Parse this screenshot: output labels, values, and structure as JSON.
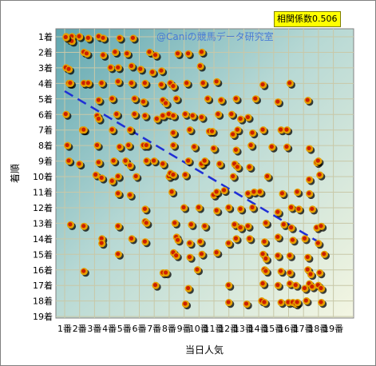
{
  "chart_data": {
    "type": "scatter",
    "title": "",
    "watermark": "@Caniの競馬データ研究室",
    "annotation": "相関係数0.506",
    "xlabel": "当日人気",
    "ylabel": "着順",
    "x_ticks": [
      "1番",
      "2番",
      "3番",
      "4番",
      "5番",
      "6番",
      "7番",
      "8番",
      "9番",
      "10番",
      "11番",
      "12番",
      "13番",
      "14番",
      "15番",
      "16番",
      "17番",
      "18番",
      "19番"
    ],
    "y_ticks": [
      "1着",
      "2着",
      "3着",
      "4着",
      "5着",
      "6着",
      "7着",
      "8着",
      "9着",
      "10着",
      "11着",
      "12着",
      "13着",
      "14着",
      "15着",
      "16着",
      "17着",
      "18着",
      "19着"
    ],
    "xlim": [
      1,
      19
    ],
    "ylim": [
      1,
      19
    ],
    "y_inverted": true,
    "grid": true,
    "trendline": {
      "style": "dashed",
      "color": "#1f2fd6",
      "from": [
        1,
        4.5
      ],
      "to": [
        18,
        14.2
      ]
    },
    "colors": {
      "point_outer": "#e5a000",
      "point_inner": "#cc1f00",
      "point_shadow": "#000000",
      "grid": "#c8c8a8"
    },
    "points": [
      [
        1.1,
        1.0
      ],
      [
        1.3,
        1.1
      ],
      [
        1.5,
        1.0
      ],
      [
        2.0,
        1.0
      ],
      [
        2.6,
        1.1
      ],
      [
        3.3,
        1.0
      ],
      [
        3.6,
        1.1
      ],
      [
        4.7,
        1.1
      ],
      [
        5.6,
        1.1
      ],
      [
        1.3,
        1.2
      ],
      [
        1.5,
        1.3
      ],
      [
        1.1,
        1.05
      ],
      [
        2.3,
        2.0
      ],
      [
        2.5,
        2.1
      ],
      [
        3.6,
        2.2
      ],
      [
        4.4,
        2.0
      ],
      [
        5.2,
        2.1
      ],
      [
        6.7,
        2.0
      ],
      [
        7.1,
        2.2
      ],
      [
        8.6,
        2.1
      ],
      [
        9.3,
        2.1
      ],
      [
        10.2,
        2.0
      ],
      [
        1.1,
        3.0
      ],
      [
        1.3,
        3.1
      ],
      [
        4.1,
        3.0
      ],
      [
        4.6,
        3.0
      ],
      [
        5.5,
        2.9
      ],
      [
        6.1,
        3.1
      ],
      [
        6.9,
        3.3
      ],
      [
        7.5,
        3.2
      ],
      [
        10.1,
        2.9
      ],
      [
        1.3,
        4.0
      ],
      [
        1.4,
        4.0
      ],
      [
        2.3,
        4.0
      ],
      [
        2.6,
        4.0
      ],
      [
        3.5,
        4.0
      ],
      [
        4.6,
        3.9
      ],
      [
        5.5,
        4.0
      ],
      [
        6.4,
        4.0
      ],
      [
        7.5,
        4.1
      ],
      [
        8.1,
        4.0
      ],
      [
        8.3,
        4.2
      ],
      [
        9.2,
        4.0
      ],
      [
        10.3,
        4.0
      ],
      [
        11.2,
        3.9
      ],
      [
        14.3,
        4.1
      ],
      [
        16.1,
        4.0
      ],
      [
        3.3,
        5.1
      ],
      [
        4.2,
        5.0
      ],
      [
        5.7,
        5.0
      ],
      [
        6.3,
        5.2
      ],
      [
        7.6,
        5.1
      ],
      [
        7.8,
        5.3
      ],
      [
        8.5,
        5.0
      ],
      [
        10.6,
        5.0
      ],
      [
        11.5,
        5.1
      ],
      [
        12.5,
        5.0
      ],
      [
        13.8,
        5.0
      ],
      [
        15.3,
        5.2
      ],
      [
        17.3,
        5.1
      ],
      [
        1.1,
        6.0
      ],
      [
        3.2,
        6.1
      ],
      [
        3.3,
        6.3
      ],
      [
        4.5,
        6.0
      ],
      [
        5.7,
        6.0
      ],
      [
        6.4,
        6.1
      ],
      [
        7.2,
        6.3
      ],
      [
        7.6,
        6.1
      ],
      [
        8.0,
        6.0
      ],
      [
        8.3,
        6.1
      ],
      [
        9.1,
        6.0
      ],
      [
        9.6,
        6.1
      ],
      [
        10.2,
        6.2
      ],
      [
        11.3,
        6.0
      ],
      [
        12.2,
        6.0
      ],
      [
        13.3,
        6.2
      ],
      [
        12.8,
        6.3
      ],
      [
        2.2,
        7.0
      ],
      [
        2.3,
        7.0
      ],
      [
        4.2,
        7.0
      ],
      [
        5.4,
        7.0
      ],
      [
        8.3,
        7.2
      ],
      [
        9.4,
        7.0
      ],
      [
        10.7,
        7.1
      ],
      [
        10.9,
        7.1
      ],
      [
        12.3,
        7.3
      ],
      [
        12.6,
        7.0
      ],
      [
        13.6,
        7.2
      ],
      [
        14.3,
        7.0
      ],
      [
        15.5,
        7.0
      ],
      [
        15.9,
        7.0
      ],
      [
        1.2,
        8.0
      ],
      [
        3.2,
        8.0
      ],
      [
        4.7,
        8.1
      ],
      [
        5.3,
        8.0
      ],
      [
        6.3,
        8.0
      ],
      [
        6.5,
        8.0
      ],
      [
        8.3,
        8.0
      ],
      [
        9.7,
        8.1
      ],
      [
        11.0,
        8.2
      ],
      [
        12.5,
        8.3
      ],
      [
        13.5,
        8.0
      ],
      [
        14.9,
        8.1
      ],
      [
        15.9,
        8.1
      ],
      [
        17.4,
        8.2
      ],
      [
        1.3,
        9.0
      ],
      [
        2.0,
        9.2
      ],
      [
        3.3,
        9.1
      ],
      [
        4.3,
        9.0
      ],
      [
        5.1,
        9.0
      ],
      [
        5.4,
        9.3
      ],
      [
        6.5,
        9.0
      ],
      [
        7.0,
        9.0
      ],
      [
        7.6,
        9.2
      ],
      [
        9.3,
        9.0
      ],
      [
        10.2,
        9.2
      ],
      [
        10.4,
        9.0
      ],
      [
        11.4,
        9.2
      ],
      [
        12.4,
        9.2
      ],
      [
        12.6,
        9.4
      ],
      [
        13.4,
        9.4
      ],
      [
        17.9,
        9.1
      ],
      [
        18.0,
        9.0
      ],
      [
        3.1,
        9.9
      ],
      [
        3.5,
        10.1
      ],
      [
        4.2,
        10.3
      ],
      [
        4.6,
        10.0
      ],
      [
        5.8,
        10.0
      ],
      [
        8.0,
        10.0
      ],
      [
        8.1,
        9.8
      ],
      [
        8.3,
        9.9
      ],
      [
        9.1,
        9.9
      ],
      [
        12.3,
        10.0
      ],
      [
        14.6,
        10.0
      ],
      [
        17.4,
        10.2
      ],
      [
        18.1,
        9.9
      ],
      [
        4.6,
        11.1
      ],
      [
        5.4,
        11.2
      ],
      [
        8.2,
        11.0
      ],
      [
        11.0,
        11.2
      ],
      [
        11.2,
        11.0
      ],
      [
        11.7,
        10.9
      ],
      [
        13.3,
        11.1
      ],
      [
        13.7,
        11.0
      ],
      [
        14.1,
        11.0
      ],
      [
        15.6,
        11.1
      ],
      [
        16.6,
        11.0
      ],
      [
        17.4,
        11.1
      ],
      [
        6.4,
        12.1
      ],
      [
        9.0,
        12.0
      ],
      [
        10.0,
        12.0
      ],
      [
        11.2,
        12.2
      ],
      [
        12.0,
        12.0
      ],
      [
        12.8,
        12.1
      ],
      [
        13.6,
        12.0
      ],
      [
        15.3,
        12.3
      ],
      [
        16.2,
        12.0
      ],
      [
        16.7,
        12.1
      ],
      [
        17.6,
        12.1
      ],
      [
        1.4,
        13.1
      ],
      [
        2.3,
        13.2
      ],
      [
        4.6,
        13.2
      ],
      [
        6.4,
        12.9
      ],
      [
        6.5,
        13.0
      ],
      [
        8.4,
        13.0
      ],
      [
        9.5,
        13.1
      ],
      [
        10.4,
        13.2
      ],
      [
        12.4,
        13.1
      ],
      [
        12.8,
        13.3
      ],
      [
        13.3,
        13.2
      ],
      [
        14.5,
        13.0
      ],
      [
        15.7,
        13.1
      ],
      [
        16.2,
        13.3
      ],
      [
        17.9,
        13.3
      ],
      [
        18.2,
        13.2
      ],
      [
        3.5,
        14.0
      ],
      [
        3.5,
        14.3
      ],
      [
        5.5,
        14.0
      ],
      [
        6.4,
        14.2
      ],
      [
        8.5,
        13.9
      ],
      [
        8.6,
        14.1
      ],
      [
        9.4,
        14.3
      ],
      [
        10.1,
        14.2
      ],
      [
        12.0,
        14.3
      ],
      [
        12.5,
        14.0
      ],
      [
        13.4,
        14.0
      ],
      [
        14.4,
        14.2
      ],
      [
        15.3,
        13.9
      ],
      [
        16.3,
        14.1
      ],
      [
        17.1,
        14.0
      ],
      [
        18.0,
        14.3
      ],
      [
        4.6,
        15.0
      ],
      [
        8.3,
        14.9
      ],
      [
        8.5,
        15.1
      ],
      [
        9.4,
        15.2
      ],
      [
        10.2,
        15.0
      ],
      [
        11.2,
        14.9
      ],
      [
        14.3,
        15.0
      ],
      [
        14.5,
        15.3
      ],
      [
        15.3,
        15.1
      ],
      [
        16.1,
        15.1
      ],
      [
        17.3,
        15.2
      ],
      [
        18.4,
        15.0
      ],
      [
        2.3,
        16.1
      ],
      [
        7.6,
        16.2
      ],
      [
        7.8,
        16.2
      ],
      [
        9.9,
        16.0
      ],
      [
        14.4,
        16.0
      ],
      [
        14.5,
        16.1
      ],
      [
        15.5,
        16.1
      ],
      [
        16.1,
        16.2
      ],
      [
        17.3,
        16.0
      ],
      [
        17.5,
        16.3
      ],
      [
        18.1,
        16.2
      ],
      [
        7.1,
        17.0
      ],
      [
        9.3,
        17.2
      ],
      [
        12.0,
        17.0
      ],
      [
        14.3,
        16.9
      ],
      [
        15.3,
        17.0
      ],
      [
        16.1,
        16.9
      ],
      [
        16.5,
        17.0
      ],
      [
        17.1,
        17.2
      ],
      [
        17.4,
        16.9
      ],
      [
        17.6,
        17.1
      ],
      [
        18.0,
        17.0
      ],
      [
        18.2,
        17.2
      ],
      [
        9.1,
        18.2
      ],
      [
        12.0,
        18.1
      ],
      [
        13.2,
        18.2
      ],
      [
        14.2,
        18.0
      ],
      [
        14.4,
        18.1
      ],
      [
        15.5,
        18.1
      ],
      [
        16.0,
        18.1
      ],
      [
        16.3,
        18.1
      ],
      [
        16.5,
        18.2
      ],
      [
        16.6,
        18.1
      ],
      [
        17.2,
        18.0
      ],
      [
        18.2,
        18.1
      ]
    ]
  }
}
